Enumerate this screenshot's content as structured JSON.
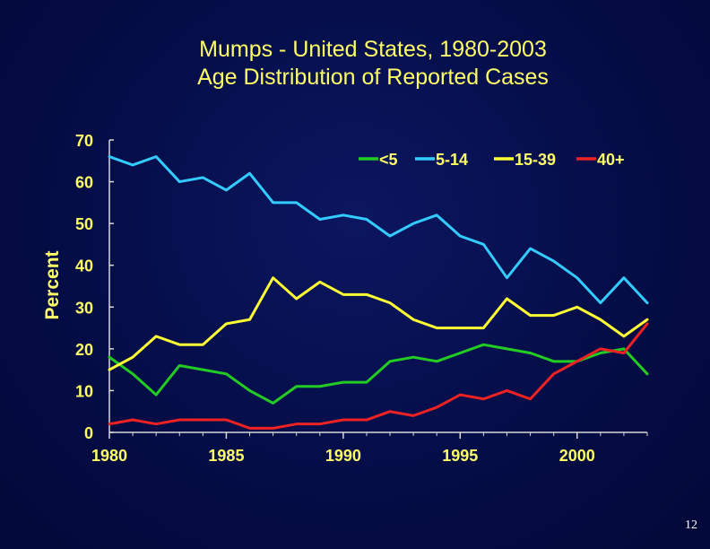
{
  "slide": {
    "title_line1": "Mumps - United States, 1980-2003",
    "title_line2": "Age Distribution of Reported Cases",
    "page_number": "12"
  },
  "chart_data": {
    "type": "line",
    "ylabel": "Percent",
    "xlabel": "",
    "xlim": [
      1980,
      2003
    ],
    "ylim": [
      0,
      70
    ],
    "x_ticks": [
      "1980",
      "1985",
      "1990",
      "1995",
      "2000"
    ],
    "y_ticks": [
      "0",
      "10",
      "20",
      "30",
      "40",
      "50",
      "60",
      "70"
    ],
    "legend_position": "top-right",
    "grid": false,
    "x": [
      1980,
      1981,
      1982,
      1983,
      1984,
      1985,
      1986,
      1987,
      1988,
      1989,
      1990,
      1991,
      1992,
      1993,
      1994,
      1995,
      1996,
      1997,
      1998,
      1999,
      2000,
      2001,
      2002,
      2003
    ],
    "series": [
      {
        "name": "<5",
        "color": "#22cc22",
        "values": [
          18,
          14,
          9,
          16,
          15,
          14,
          10,
          7,
          11,
          11,
          12,
          12,
          17,
          18,
          17,
          19,
          21,
          20,
          19,
          17,
          17,
          19,
          20,
          14
        ]
      },
      {
        "name": "5-14",
        "color": "#33ccff",
        "values": [
          66,
          64,
          66,
          60,
          61,
          58,
          62,
          55,
          55,
          51,
          52,
          51,
          47,
          50,
          52,
          47,
          45,
          37,
          44,
          41,
          37,
          31,
          37,
          31
        ]
      },
      {
        "name": "15-39",
        "color": "#ffff33",
        "values": [
          15,
          18,
          23,
          21,
          21,
          26,
          27,
          37,
          32,
          36,
          33,
          33,
          31,
          27,
          25,
          25,
          25,
          32,
          28,
          28,
          30,
          27,
          23,
          27
        ]
      },
      {
        "name": "40+",
        "color": "#ee2222",
        "values": [
          2,
          3,
          2,
          3,
          3,
          3,
          1,
          1,
          2,
          2,
          3,
          3,
          5,
          4,
          6,
          9,
          8,
          10,
          8,
          14,
          17,
          20,
          19,
          26
        ]
      }
    ]
  }
}
